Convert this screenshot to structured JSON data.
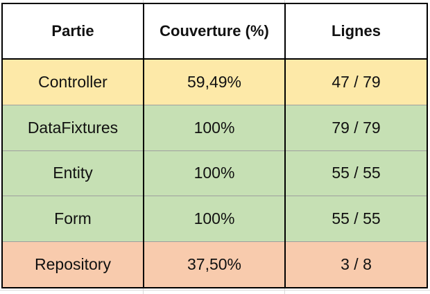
{
  "table": {
    "headers": [
      "Partie",
      "Couverture (%)",
      "Lignes"
    ],
    "rows": [
      {
        "partie": "Controller",
        "couverture": "59,49%",
        "lignes": "47 / 79",
        "color": "#fde9a8"
      },
      {
        "partie": "DataFixtures",
        "couverture": "100%",
        "lignes": "79 / 79",
        "color": "#c6e0b4"
      },
      {
        "partie": "Entity",
        "couverture": "100%",
        "lignes": "55 / 55",
        "color": "#c6e0b4"
      },
      {
        "partie": "Form",
        "couverture": "100%",
        "lignes": "55 / 55",
        "color": "#c6e0b4"
      },
      {
        "partie": "Repository",
        "couverture": "37,50%",
        "lignes": "3 / 8",
        "color": "#f8cbad"
      }
    ]
  }
}
